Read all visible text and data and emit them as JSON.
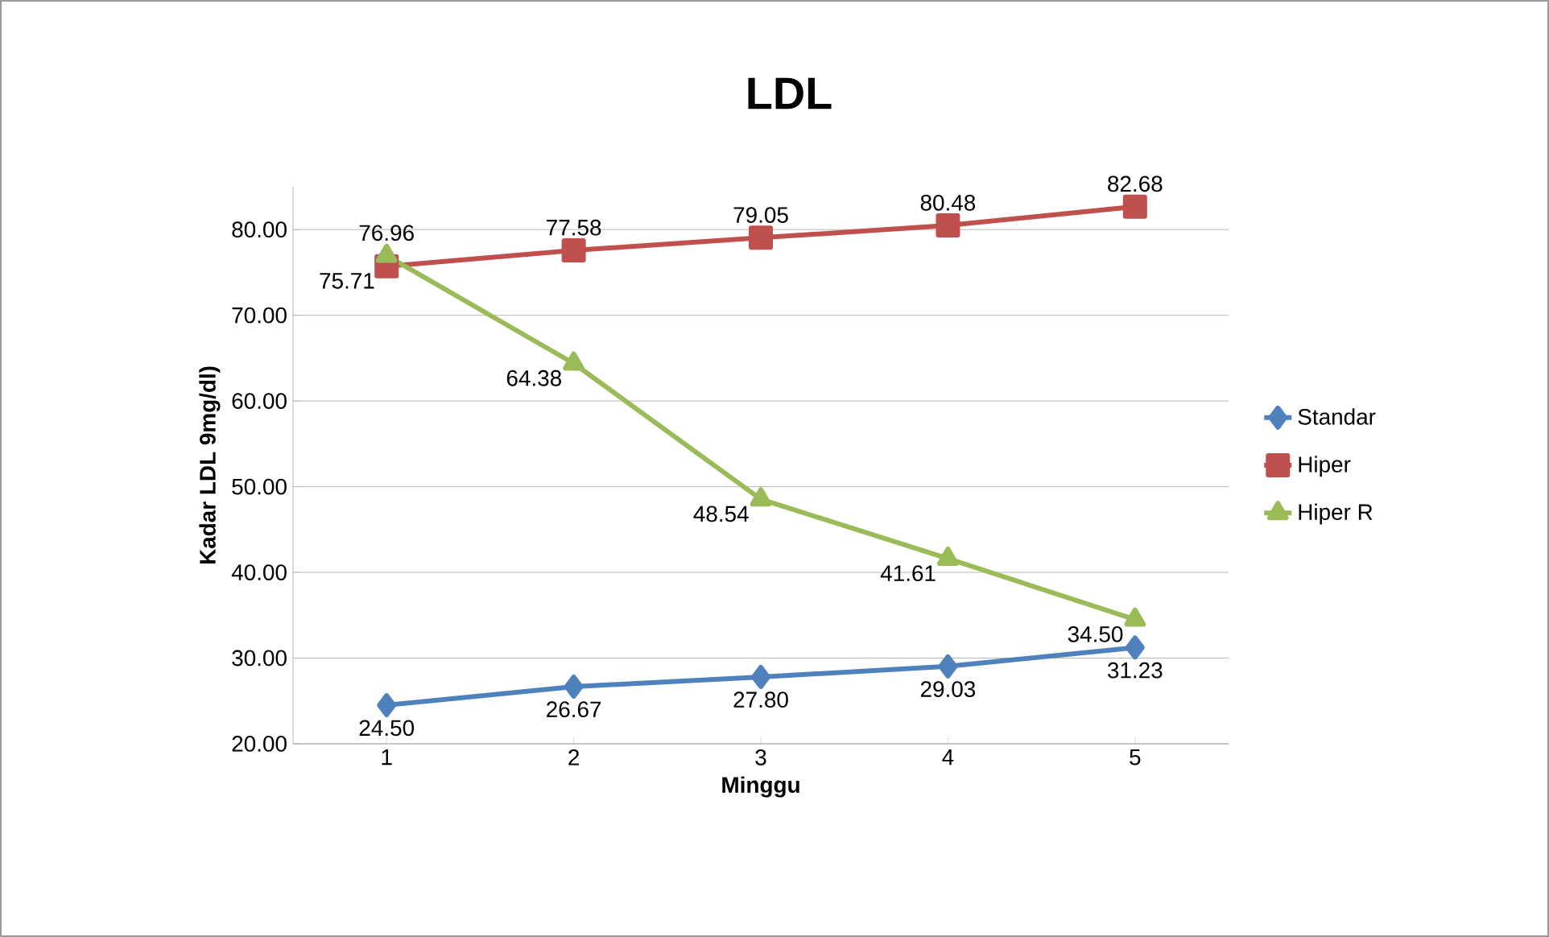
{
  "chart_data": {
    "type": "line",
    "title": "LDL",
    "xlabel": "Minggu",
    "ylabel": "Kadar LDL 9mg/dl)",
    "categories": [
      "1",
      "2",
      "3",
      "4",
      "5"
    ],
    "series": [
      {
        "name": "Standar",
        "color": "#4f81bd",
        "marker": "diamond",
        "values": [
          24.5,
          26.67,
          27.8,
          29.03,
          31.23
        ],
        "value_labels": [
          "24.50",
          "26.67",
          "27.80",
          "29.03",
          "31.23"
        ]
      },
      {
        "name": "Hiper",
        "color": "#c0504d",
        "marker": "square",
        "values": [
          75.71,
          77.58,
          79.05,
          80.48,
          82.68
        ],
        "value_labels": [
          "75.71",
          "77.58",
          "79.05",
          "80.48",
          "82.68"
        ]
      },
      {
        "name": "Hiper R",
        "color": "#9bbb59",
        "marker": "triangle",
        "values": [
          76.96,
          64.38,
          48.54,
          41.61,
          34.5
        ],
        "value_labels": [
          "76.96",
          "64.38",
          "48.54",
          "41.61",
          "34.50"
        ]
      }
    ],
    "ylim": [
      20,
      85
    ],
    "yticks": [
      {
        "value": 20,
        "label": "20.00"
      },
      {
        "value": 30,
        "label": "30.00"
      },
      {
        "value": 40,
        "label": "40.00"
      },
      {
        "value": 50,
        "label": "50.00"
      },
      {
        "value": 60,
        "label": "60.00"
      },
      {
        "value": 70,
        "label": "70.00"
      },
      {
        "value": 80,
        "label": "80.00"
      }
    ],
    "grid": "y",
    "legend": "right",
    "line_style": "solid"
  }
}
